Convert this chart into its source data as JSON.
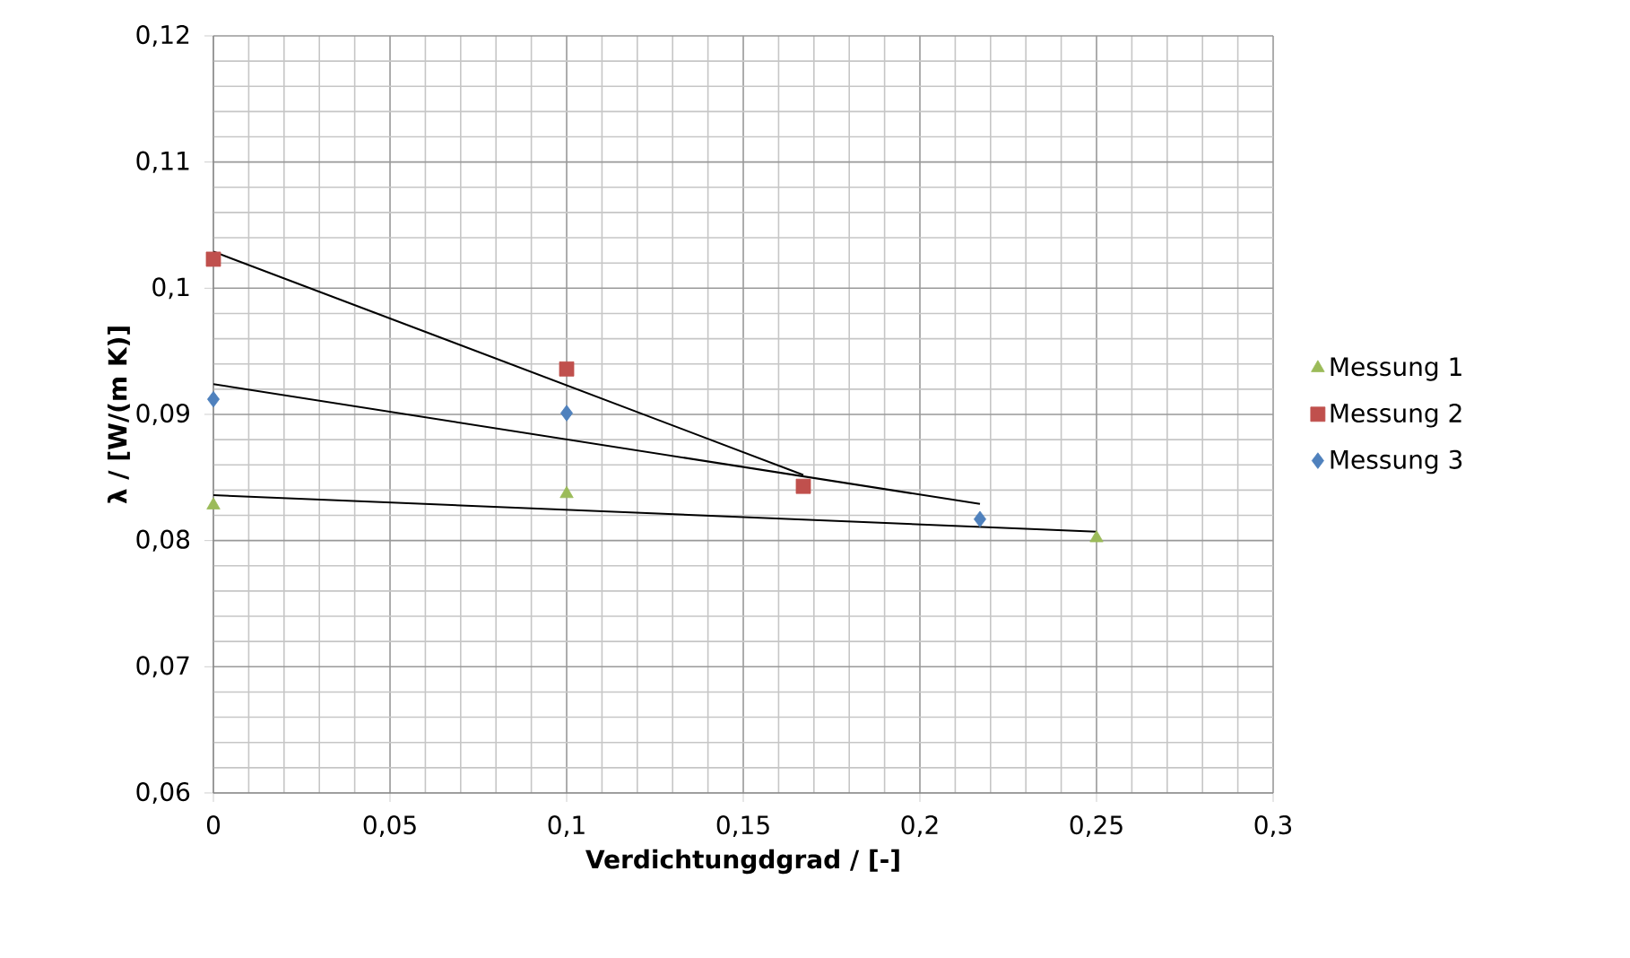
{
  "chart_data": {
    "type": "scatter",
    "xlabel": "Verdichtungdgrad / [-]",
    "ylabel": "λ / [W/(m K)]",
    "xlim": [
      0,
      0.3
    ],
    "ylim": [
      0.06,
      0.12
    ],
    "xticks": [
      {
        "value": 0,
        "label": "0"
      },
      {
        "value": 0.05,
        "label": "0,05"
      },
      {
        "value": 0.1,
        "label": "0,1"
      },
      {
        "value": 0.15,
        "label": "0,15"
      },
      {
        "value": 0.2,
        "label": "0,2"
      },
      {
        "value": 0.25,
        "label": "0,25"
      },
      {
        "value": 0.3,
        "label": "0,3"
      }
    ],
    "yticks": [
      {
        "value": 0.06,
        "label": "0,06"
      },
      {
        "value": 0.07,
        "label": "0,07"
      },
      {
        "value": 0.08,
        "label": "0,08"
      },
      {
        "value": 0.09,
        "label": "0,09"
      },
      {
        "value": 0.1,
        "label": "0,1"
      },
      {
        "value": 0.11,
        "label": "0,11"
      },
      {
        "value": 0.12,
        "label": "0,12"
      }
    ],
    "grid": true,
    "legend": "right",
    "series": [
      {
        "name": "Messung 1",
        "color": "#9bbb59",
        "marker": "triangle",
        "x": [
          0,
          0.1,
          0.25
        ],
        "values": [
          0.0828,
          0.0837,
          0.0802
        ]
      },
      {
        "name": "Messung 2",
        "color": "#c0504d",
        "marker": "square",
        "x": [
          0,
          0.1,
          0.167
        ],
        "values": [
          0.1023,
          0.0936,
          0.0843
        ]
      },
      {
        "name": "Messung 3",
        "color": "#4f81bd",
        "marker": "diamond",
        "x": [
          0,
          0.1,
          0.217
        ],
        "values": [
          0.0912,
          0.0901,
          0.0817
        ]
      },
      {
        "type": "line",
        "color": "#000000",
        "marker": "none",
        "x": [
          0,
          0.25
        ],
        "values": [
          0.0836,
          0.0807
        ]
      },
      {
        "type": "line",
        "color": "#000000",
        "marker": "none",
        "x": [
          0,
          0.167
        ],
        "values": [
          0.1029,
          0.0852
        ]
      },
      {
        "type": "line",
        "color": "#000000",
        "marker": "none",
        "x": [
          0,
          0.217
        ],
        "values": [
          0.0924,
          0.0829
        ]
      }
    ]
  }
}
